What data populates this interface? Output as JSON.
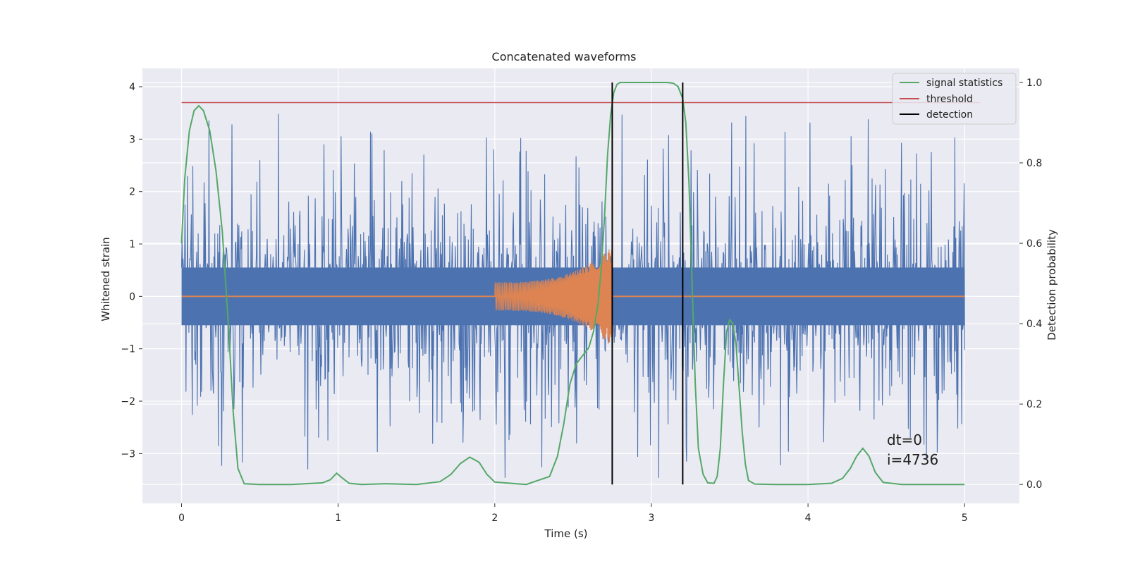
{
  "chart_data": {
    "type": "line",
    "title": "Concatenated waveforms",
    "xlabel": "Time (s)",
    "ylabel_left": "Whitened strain",
    "ylabel_right": "Detection probability",
    "xlim": [
      -0.25,
      5.35
    ],
    "ylim_left": [
      -3.95,
      4.35
    ],
    "ylim_right": [
      -0.047,
      1.035
    ],
    "x_ticks": [
      0,
      1,
      2,
      3,
      4,
      5
    ],
    "y_left_ticks": [
      4,
      3,
      2,
      1,
      0,
      -1,
      -2,
      -3
    ],
    "y_left_tick_labels": [
      "4",
      "3",
      "2",
      "1",
      "0",
      "−1",
      "−2",
      "−3"
    ],
    "y_right_ticks": [
      1.0,
      0.8,
      0.6,
      0.4,
      0.2,
      0.0
    ],
    "y_right_tick_labels": [
      "1.0",
      "0.8",
      "0.6",
      "0.4",
      "0.2",
      "0.0"
    ],
    "grid": true,
    "legend_position": "top-right",
    "colors": {
      "background": "#eaeaf2",
      "strain": "#4c72b0",
      "waveform": "#dd8452",
      "signal_statistics": "#55a868",
      "threshold": "#c44e52",
      "detection": "#000000",
      "grid": "#ffffff"
    },
    "series": [
      {
        "name": "signal statistics",
        "axis": "right",
        "x": [
          0,
          0.02,
          0.05,
          0.08,
          0.11,
          0.14,
          0.18,
          0.22,
          0.26,
          0.3,
          0.33,
          0.36,
          0.4,
          0.5,
          0.7,
          0.9,
          0.95,
          0.99,
          1.03,
          1.07,
          1.15,
          1.3,
          1.5,
          1.65,
          1.72,
          1.78,
          1.84,
          1.9,
          1.95,
          2.0,
          2.2,
          2.35,
          2.4,
          2.44,
          2.48,
          2.52,
          2.56,
          2.6,
          2.63,
          2.66,
          2.68,
          2.7,
          2.72,
          2.74,
          2.76,
          2.78,
          2.8,
          2.85,
          3.0,
          3.1,
          3.14,
          3.17,
          3.2,
          3.22,
          3.24,
          3.26,
          3.28,
          3.3,
          3.33,
          3.36,
          3.4,
          3.42,
          3.44,
          3.46,
          3.48,
          3.5,
          3.52,
          3.54,
          3.56,
          3.58,
          3.6,
          3.62,
          3.66,
          3.8,
          4.0,
          4.15,
          4.22,
          4.27,
          4.31,
          4.35,
          4.39,
          4.43,
          4.48,
          4.6,
          4.8,
          5.0
        ],
        "values": [
          0.6,
          0.76,
          0.88,
          0.93,
          0.942,
          0.93,
          0.88,
          0.78,
          0.63,
          0.39,
          0.18,
          0.04,
          0.002,
          0.0,
          0.0,
          0.004,
          0.012,
          0.028,
          0.015,
          0.003,
          0.0,
          0.002,
          0.0,
          0.007,
          0.025,
          0.052,
          0.068,
          0.055,
          0.025,
          0.006,
          0.0,
          0.02,
          0.07,
          0.15,
          0.25,
          0.3,
          0.32,
          0.34,
          0.38,
          0.45,
          0.54,
          0.66,
          0.82,
          0.92,
          0.975,
          0.995,
          1.0,
          1.0,
          1.0,
          1.0,
          0.998,
          0.99,
          0.96,
          0.9,
          0.75,
          0.5,
          0.25,
          0.09,
          0.025,
          0.004,
          0.003,
          0.02,
          0.09,
          0.25,
          0.38,
          0.41,
          0.4,
          0.35,
          0.24,
          0.13,
          0.05,
          0.01,
          0.001,
          0.0,
          0.0,
          0.003,
          0.015,
          0.04,
          0.07,
          0.09,
          0.07,
          0.03,
          0.005,
          0.0,
          0.0,
          0.0
        ]
      },
      {
        "name": "threshold",
        "axis": "right",
        "x": [
          0,
          5.1
        ],
        "values": [
          0.95,
          0.95
        ]
      },
      {
        "name": "detection",
        "axis": "right",
        "x": [
          2.75,
          3.2
        ],
        "values": [
          1.0,
          1.0
        ]
      },
      {
        "name": "",
        "axis": "left",
        "description_values": "whitened strain noise, approx. ±1 to ±3.5 with spikes",
        "x_range": [
          0,
          5
        ],
        "amplitude_envelope": [
          0.55,
          3.5
        ]
      },
      {
        "name": "",
        "axis": "left",
        "x_range": [
          2.0,
          2.75
        ],
        "amplitude_start": 0.27,
        "amplitude_end": 0.95,
        "baseline_range": [
          0,
          5
        ]
      }
    ],
    "annotations": [
      "dt=0",
      "i=4736"
    ]
  }
}
